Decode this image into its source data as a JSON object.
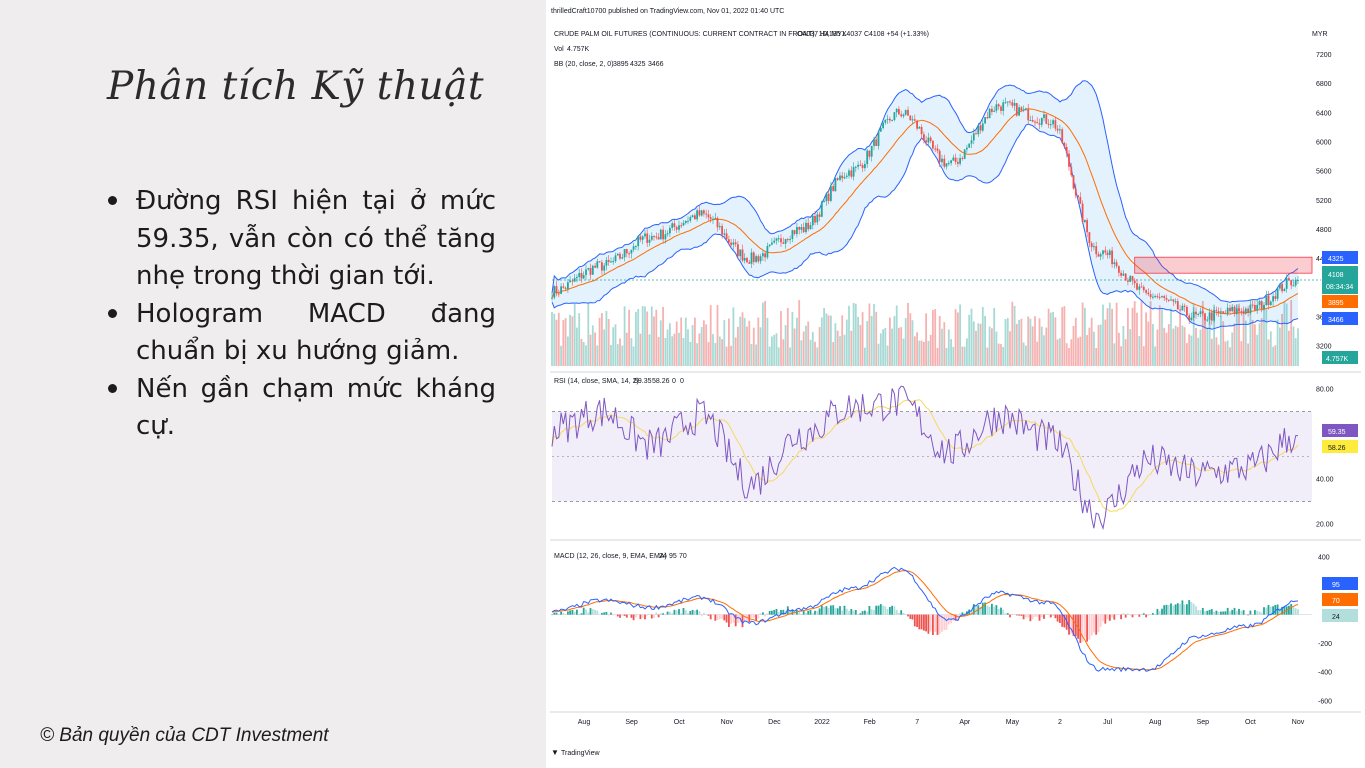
{
  "slide": {
    "title": "Phân tích Kỹ thuật",
    "bullets": [
      "Đường RSI hiện tại ở mức 59.35, vẫn còn có thể tăng nhẹ trong thời gian tới.",
      "Hologram MACD đang chuẩn bị xu hướng giảm.",
      "Nến gần chạm mức kháng cự."
    ],
    "copyright": "© Bản quyền của CDT Investment"
  },
  "chart": {
    "publisher": "thrilledCraft10700 published on TradingView.com, Nov 01, 2022 01:40 UTC",
    "currency": "MYR",
    "brand": "TradingView",
    "price_pane": {
      "symbol_text": "CRUDE PALM OIL FUTURES (CONTINUOUS: CURRENT CONTRACT IN FRONT), 1D, MYX",
      "ohlc_text": "O4037  H4135  L4037  C4108  +54 (+1.33%)",
      "vol_label": "Vol",
      "vol_value": "4.757K",
      "bb_label": "BB (20, close, 2, 0)",
      "bb_values": [
        "3895",
        "4325",
        "3466"
      ],
      "y_ticks": [
        "7200",
        "6800",
        "6400",
        "6000",
        "5600",
        "5200",
        "4800",
        "4400",
        "3600",
        "3200"
      ],
      "badges": {
        "bb_upper": "4325",
        "price": "4108",
        "countdown": "08:34:34",
        "bb_basis": "3895",
        "bb_lower": "3466",
        "volume": "4.757K"
      }
    },
    "rsi_pane": {
      "label": "RSI (14, close, SMA, 14, 2)",
      "values": [
        "59.35",
        "58.26",
        "0",
        "0"
      ],
      "y_ticks": [
        "80.00",
        "40.00",
        "20.00"
      ],
      "badges": {
        "rsi": "59.35",
        "sma": "58.26"
      }
    },
    "macd_pane": {
      "label": "MACD (12, 26, close, 9, EMA, EMA)",
      "values": [
        "24",
        "95",
        "70"
      ],
      "y_ticks": [
        "400",
        "-200",
        "-400",
        "-600"
      ],
      "badges": {
        "macd": "95",
        "signal": "70",
        "hist": "24"
      }
    },
    "x_ticks": [
      "Aug",
      "Sep",
      "Oct",
      "Nov",
      "Dec",
      "2022",
      "Feb",
      "7",
      "Apr",
      "May",
      "2",
      "Jul",
      "Aug",
      "Sep",
      "Oct",
      "Nov"
    ]
  },
  "chart_data": {
    "type": "line",
    "x": [
      "Aug",
      "Sep",
      "Oct",
      "Nov",
      "Dec",
      "2022",
      "Feb",
      "7",
      "Apr",
      "May",
      "2",
      "Jul",
      "Aug",
      "Sep",
      "Oct",
      "Nov"
    ],
    "series": [
      {
        "name": "CRUDE PALM OIL FUTURES (CONTINUOUS: CURRENT CONTRACT IN FRONT), 1D, MYX",
        "values": [
          3950,
          4300,
          4700,
          5000,
          4400,
          4800,
          5600,
          6400,
          5700,
          6500,
          6300,
          4500,
          3900,
          3600,
          3700,
          4108
        ]
      },
      {
        "name": "BB (20, close, 2, 0)",
        "values": [
          3800,
          4150,
          4550,
          4900,
          4600,
          4700,
          5300,
          6000,
          5900,
          6200,
          6300,
          4900,
          4000,
          3700,
          3650,
          3895
        ]
      },
      {
        "name": "RSI (14, close, SMA, 14, 2)",
        "values": [
          62,
          70,
          55,
          68,
          38,
          60,
          72,
          74,
          52,
          68,
          58,
          24,
          48,
          42,
          45,
          59.35
        ]
      },
      {
        "name": "MACD (12, 26, close, 9, EMA, EMA)",
        "values": [
          20,
          100,
          50,
          120,
          -60,
          40,
          180,
          320,
          -40,
          150,
          80,
          -380,
          -380,
          -150,
          -80,
          95
        ]
      }
    ],
    "y_ranges": {
      "price": [
        2900,
        7400
      ],
      "rsi": [
        15,
        85
      ],
      "macd": [
        -650,
        450
      ]
    },
    "resistance_zone": [
      4200,
      4420
    ],
    "rsi_levels": [
      70,
      50,
      30
    ]
  }
}
